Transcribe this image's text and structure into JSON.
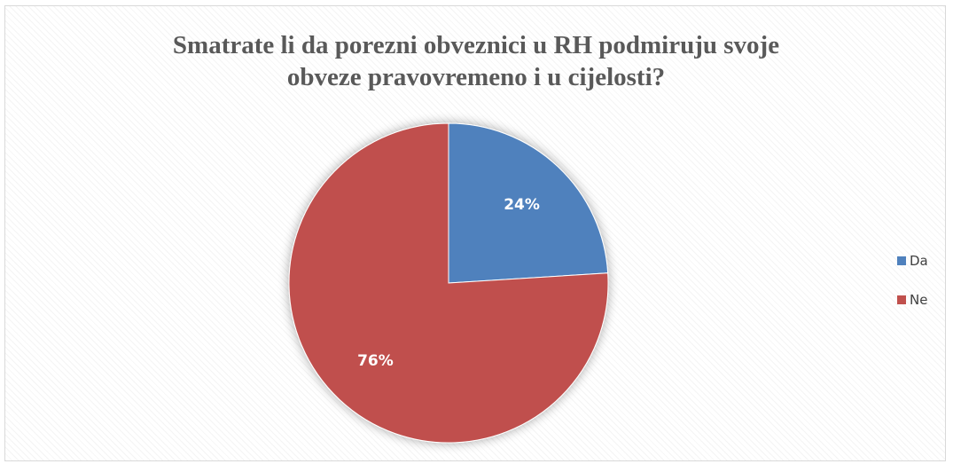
{
  "chart_data": {
    "type": "pie",
    "title_lines": [
      "Smatrate li da porezni obveznici u RH podmiruju svoje",
      "obveze pravovremeno i u cijelosti?"
    ],
    "slices": [
      {
        "label": "Da",
        "value": 24,
        "data_label": "24%",
        "color": "#4f81bd"
      },
      {
        "label": "Ne",
        "value": 76,
        "data_label": "76%",
        "color": "#c0504d"
      }
    ],
    "legend_position": "right",
    "start_angle_deg": 0,
    "direction": "clockwise"
  }
}
